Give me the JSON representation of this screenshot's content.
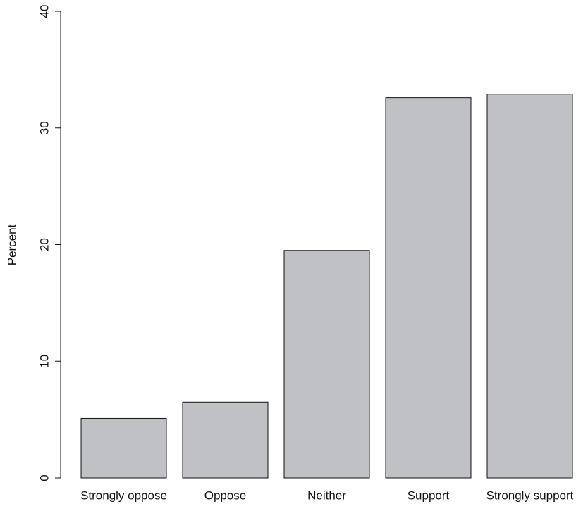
{
  "chart_data": {
    "type": "bar",
    "ylabel": "Percent",
    "categories": [
      "Strongly oppose",
      "Oppose",
      "Neither",
      "Support",
      "Strongly support"
    ],
    "values": [
      5.1,
      6.5,
      19.5,
      32.6,
      32.9
    ],
    "color": "#c0c1c5",
    "ylim": [
      0,
      40
    ],
    "yticks": [
      0,
      10,
      20,
      30,
      40
    ],
    "grid": false
  }
}
